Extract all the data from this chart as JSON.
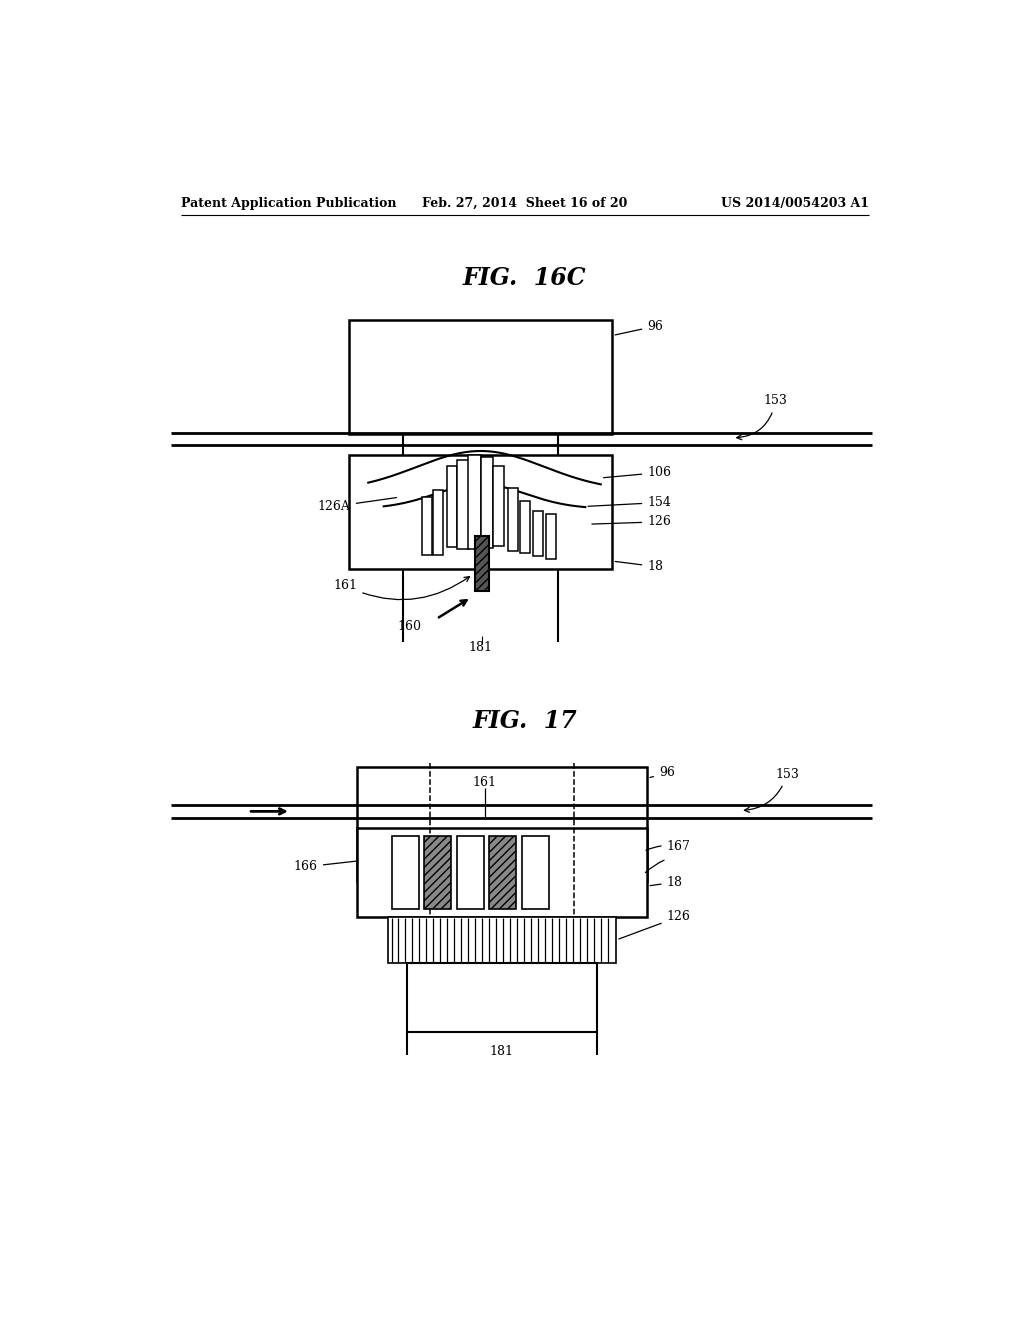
{
  "header_left": "Patent Application Publication",
  "header_mid": "Feb. 27, 2014  Sheet 16 of 20",
  "header_right": "US 2014/0054203 A1",
  "fig1_title": "FIG.  16C",
  "fig2_title": "FIG.  17",
  "bg_color": "#ffffff"
}
